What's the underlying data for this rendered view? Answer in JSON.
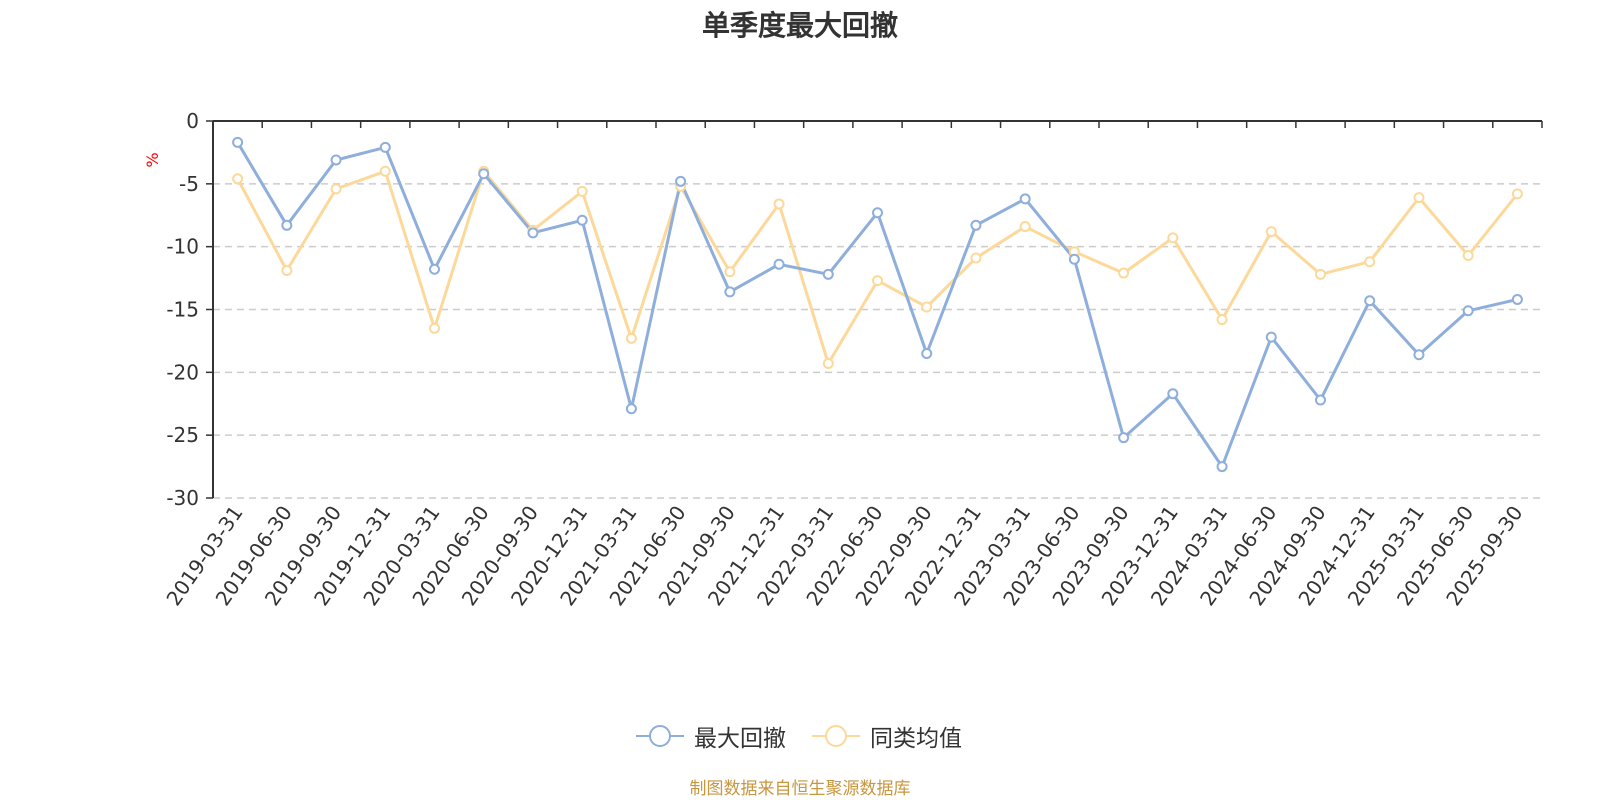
{
  "title": "单季度最大回撤",
  "source": "制图数据来自恒生聚源数据库",
  "colors": {
    "series1": "#8eaedb",
    "series2": "#fcd99a",
    "axis": "#333333",
    "grid": "#cccccc",
    "unit": "#ff0000"
  },
  "chart_data": {
    "type": "line",
    "ylabel": "%",
    "ylim": [
      -30,
      0
    ],
    "yticks": [
      0,
      -5,
      -10,
      -15,
      -20,
      -25,
      -30
    ],
    "grid": "dashed horizontal",
    "legend_position": "bottom-center",
    "categories": [
      "2019-03-31",
      "2019-06-30",
      "2019-09-30",
      "2019-12-31",
      "2020-03-31",
      "2020-06-30",
      "2020-09-30",
      "2020-12-31",
      "2021-03-31",
      "2021-06-30",
      "2021-09-30",
      "2021-12-31",
      "2022-03-31",
      "2022-06-30",
      "2022-09-30",
      "2022-12-31",
      "2023-03-31",
      "2023-06-30",
      "2023-09-30",
      "2023-12-31",
      "2024-03-31",
      "2024-06-30",
      "2024-09-30",
      "2024-12-31",
      "2025-03-31",
      "2025-06-30",
      "2025-09-30"
    ],
    "series": [
      {
        "name": "最大回撤",
        "values": [
          -1.7,
          -8.3,
          -3.1,
          -2.1,
          -11.8,
          -4.2,
          -8.9,
          -7.9,
          -22.9,
          -4.8,
          -13.6,
          -11.4,
          -12.2,
          -7.3,
          -18.5,
          -8.3,
          -6.2,
          -11.0,
          -25.2,
          -21.7,
          -27.5,
          -17.2,
          -22.2,
          -14.3,
          -18.6,
          -15.1,
          -14.2
        ]
      },
      {
        "name": "同类均值",
        "values": [
          -4.6,
          -11.9,
          -5.4,
          -4.0,
          -16.5,
          -4.0,
          -8.7,
          -5.6,
          -17.3,
          -5.2,
          -12.0,
          -6.6,
          -19.3,
          -12.7,
          -14.8,
          -10.9,
          -8.4,
          -10.4,
          -12.1,
          -9.3,
          -15.8,
          -8.8,
          -12.2,
          -11.2,
          -6.1,
          -10.7,
          -5.8
        ]
      }
    ]
  }
}
